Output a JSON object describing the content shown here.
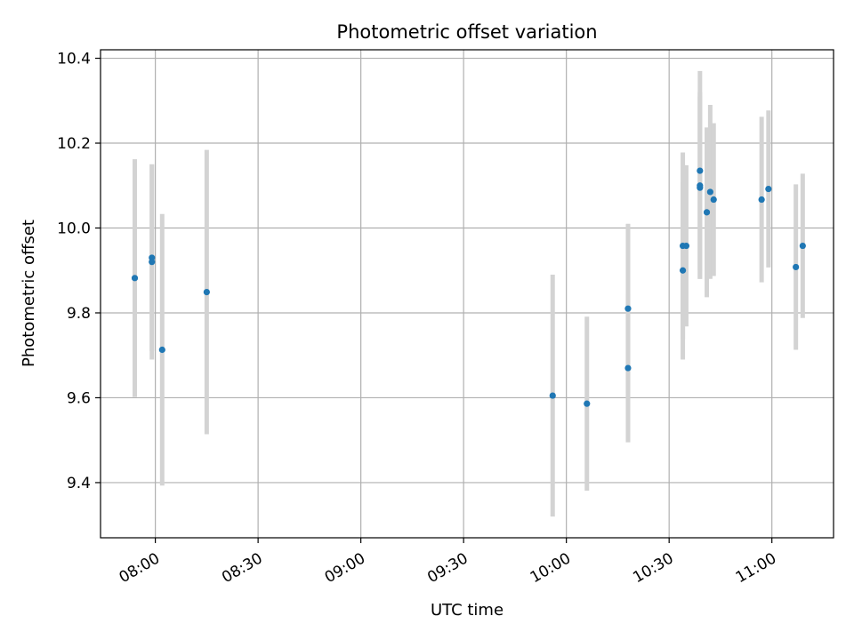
{
  "chart_data": {
    "type": "scatter",
    "title": "Photometric offset variation",
    "xlabel": "UTC time",
    "ylabel": "Photometric offset",
    "xlim": [
      "07:44",
      "11:18"
    ],
    "ylim": [
      9.27,
      10.42
    ],
    "grid": true,
    "x_ticks": [
      "08:00",
      "08:30",
      "09:00",
      "09:30",
      "10:00",
      "10:30",
      "11:00"
    ],
    "y_ticks": [
      "9.4",
      "9.6",
      "9.8",
      "10.0",
      "10.2",
      "10.4"
    ],
    "colors": {
      "point": "#1f77b4",
      "errorbar": "#d3d3d3",
      "grid": "#b0b0b0"
    },
    "series": [
      {
        "x": [
          "07:54",
          "07:59",
          "07:59",
          "08:02",
          "08:15",
          "09:56",
          "10:06",
          "10:18",
          "10:18",
          "10:34",
          "10:34",
          "10:35",
          "10:39",
          "10:39",
          "10:39",
          "10:41",
          "10:42",
          "10:43",
          "10:57",
          "10:59",
          "11:07",
          "11:09"
        ],
        "y": [
          9.882,
          9.93,
          9.92,
          9.713,
          9.849,
          9.605,
          9.586,
          9.67,
          9.81,
          9.9,
          9.958,
          9.958,
          10.095,
          10.1,
          10.135,
          10.037,
          10.085,
          10.067,
          10.067,
          10.092,
          9.908,
          9.958
        ],
        "err": [
          0.28,
          0.22,
          0.23,
          0.32,
          0.335,
          0.285,
          0.205,
          0.175,
          0.2,
          0.21,
          0.22,
          0.19,
          0.215,
          0.22,
          0.235,
          0.2,
          0.205,
          0.18,
          0.195,
          0.185,
          0.195,
          0.17
        ]
      }
    ]
  }
}
